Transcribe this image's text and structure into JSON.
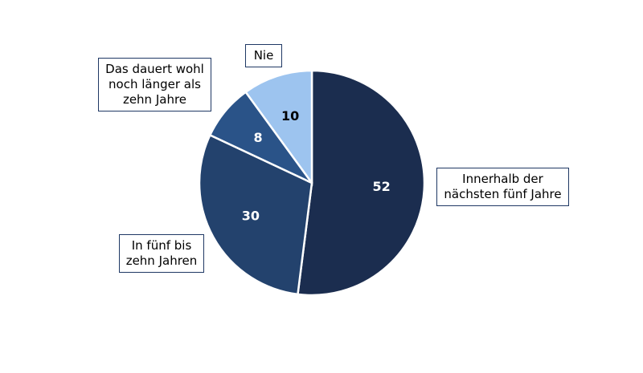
{
  "chart_data": {
    "type": "pie",
    "categories": [
      "Innerhalb der nächsten fünf Jahre",
      "In fünf bis zehn Jahren",
      "Das dauert wohl noch länger als zehn Jahre",
      "Nie"
    ],
    "values": [
      52,
      30,
      8,
      10
    ],
    "colors": [
      "#1b2d4f",
      "#23426d",
      "#2a5388",
      "#9dc4ef"
    ],
    "label_colors": [
      "#ffffff",
      "#ffffff",
      "#ffffff",
      "#000000"
    ]
  }
}
